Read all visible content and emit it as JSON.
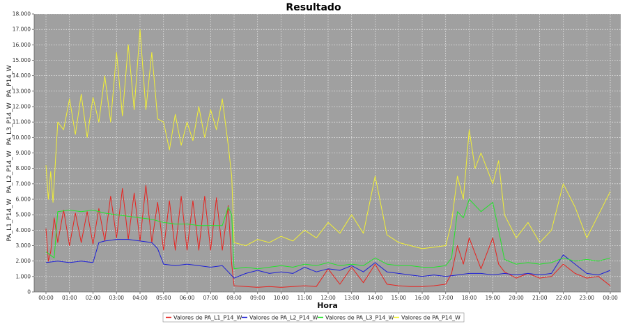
{
  "chart_data": {
    "type": "line",
    "title": "Resultado",
    "xlabel": "Hora",
    "ylabel": "PA_L1_P14_W, PA_L2_P14_W, PA_L3_P14_W, PA_P14_W",
    "ylabel_parts": [
      "PA_L1_P14_W",
      "PA_L2_P14_W",
      "PA_L3_P14_W",
      "PA_P14_W"
    ],
    "xlim": [
      0,
      24
    ],
    "ylim": [
      0,
      18000
    ],
    "x_ticks": [
      "00:00",
      "01:00",
      "02:00",
      "03:00",
      "04:00",
      "05:00",
      "06:00",
      "07:00",
      "08:00",
      "09:00",
      "10:00",
      "11:00",
      "12:00",
      "13:00",
      "14:00",
      "15:00",
      "16:00",
      "17:00",
      "18:00",
      "19:00",
      "20:00",
      "21:00",
      "22:00",
      "23:00",
      "00:00"
    ],
    "y_ticks": [
      {
        "value": 0,
        "label": "0"
      },
      {
        "value": 1000,
        "label": "1.000"
      },
      {
        "value": 2000,
        "label": "2.000"
      },
      {
        "value": 3000,
        "label": "3.000"
      },
      {
        "value": 4000,
        "label": "4.000"
      },
      {
        "value": 5000,
        "label": "5.000"
      },
      {
        "value": 6000,
        "label": "6.000"
      },
      {
        "value": 7000,
        "label": "7.000"
      },
      {
        "value": 8000,
        "label": "8.000"
      },
      {
        "value": 9000,
        "label": "9.000"
      },
      {
        "value": 10000,
        "label": "10.000"
      },
      {
        "value": 11000,
        "label": "11.000"
      },
      {
        "value": 12000,
        "label": "12.000"
      },
      {
        "value": 13000,
        "label": "13.000"
      },
      {
        "value": 14000,
        "label": "14.000"
      },
      {
        "value": 15000,
        "label": "15.000"
      },
      {
        "value": 16000,
        "label": "16.000"
      },
      {
        "value": 17000,
        "label": "17.000"
      },
      {
        "value": 18000,
        "label": "18.000"
      }
    ],
    "grid": true,
    "legend_position": "bottom",
    "plot_background": "#a0a0a0",
    "series": [
      {
        "name": "Valores de PA_L1_P14_W",
        "color": "#e8231f",
        "x": [
          0,
          0.1,
          0.2,
          0.35,
          0.5,
          0.75,
          1,
          1.25,
          1.5,
          1.75,
          2,
          2.25,
          2.5,
          2.75,
          3,
          3.25,
          3.5,
          3.75,
          4,
          4.25,
          4.5,
          4.75,
          5,
          5.25,
          5.5,
          5.75,
          6,
          6.25,
          6.5,
          6.75,
          7,
          7.25,
          7.5,
          7.75,
          7.9,
          8,
          8.5,
          9,
          9.5,
          10,
          10.5,
          11,
          11.5,
          12,
          12.5,
          13,
          13.5,
          14,
          14.5,
          15,
          15.5,
          16,
          16.5,
          17,
          17.25,
          17.5,
          17.75,
          18,
          18.5,
          19,
          19.25,
          19.5,
          20,
          20.5,
          21,
          21.5,
          22,
          22.5,
          23,
          23.5,
          24
        ],
        "y": [
          4100,
          2000,
          2600,
          4800,
          3200,
          5300,
          3000,
          5100,
          3200,
          5200,
          3100,
          5400,
          3300,
          6200,
          3500,
          6700,
          3400,
          6400,
          3300,
          6900,
          3200,
          5800,
          2700,
          5900,
          2700,
          6200,
          2700,
          5900,
          2700,
          6200,
          2700,
          6100,
          2700,
          5600,
          1800,
          400,
          350,
          300,
          350,
          300,
          350,
          400,
          350,
          1500,
          500,
          1600,
          600,
          1800,
          500,
          400,
          350,
          350,
          400,
          500,
          1200,
          3000,
          1800,
          3500,
          1500,
          3500,
          1800,
          1300,
          900,
          1200,
          900,
          1000,
          1800,
          1200,
          900,
          1000,
          400
        ]
      },
      {
        "name": "Valores de PA_L2_P14_W",
        "color": "#1e20d6",
        "x": [
          0,
          0.5,
          1,
          1.5,
          2,
          2.25,
          2.5,
          3,
          3.5,
          4,
          4.5,
          4.75,
          5,
          5.5,
          6,
          6.5,
          7,
          7.5,
          7.75,
          8,
          8.5,
          9,
          9.5,
          10,
          10.5,
          11,
          11.5,
          12,
          12.5,
          13,
          13.5,
          14,
          14.5,
          15,
          15.5,
          16,
          16.5,
          17,
          17.5,
          18,
          18.5,
          19,
          19.5,
          20,
          20.5,
          21,
          21.5,
          22,
          22.5,
          23,
          23.5,
          24
        ],
        "y": [
          1900,
          2000,
          1900,
          2000,
          1900,
          3200,
          3300,
          3400,
          3400,
          3300,
          3200,
          2800,
          1800,
          1700,
          1800,
          1700,
          1600,
          1700,
          1300,
          900,
          1200,
          1400,
          1200,
          1300,
          1200,
          1600,
          1300,
          1500,
          1400,
          1700,
          1300,
          1900,
          1300,
          1200,
          1100,
          1000,
          1100,
          1000,
          1100,
          1200,
          1200,
          1100,
          1200,
          1100,
          1200,
          1100,
          1200,
          2400,
          1800,
          1200,
          1100,
          1400
        ]
      },
      {
        "name": "Valores de PA_L3_P14_W",
        "color": "#22e42a",
        "x": [
          0,
          0.35,
          0.5,
          1,
          1.5,
          2,
          2.5,
          3,
          3.5,
          4,
          4.5,
          5,
          5.5,
          6,
          6.5,
          7,
          7.5,
          7.75,
          7.9,
          8,
          8.5,
          9,
          9.5,
          10,
          10.5,
          11,
          11.5,
          12,
          12.5,
          13,
          13.5,
          14,
          14.5,
          15,
          15.5,
          16,
          16.5,
          17,
          17.25,
          17.5,
          17.75,
          18,
          18.5,
          19,
          19.25,
          19.5,
          20,
          20.5,
          21,
          21.5,
          22,
          22.5,
          23,
          23.5,
          24
        ],
        "y": [
          2600,
          2200,
          5200,
          5300,
          5200,
          5300,
          5100,
          5000,
          4900,
          4800,
          4700,
          4500,
          4400,
          4400,
          4300,
          4300,
          4300,
          5500,
          5000,
          1500,
          1600,
          1500,
          1600,
          1700,
          1600,
          1800,
          1700,
          1900,
          1700,
          1800,
          1700,
          2200,
          1800,
          1700,
          1700,
          1600,
          1600,
          1700,
          2200,
          5200,
          4800,
          6000,
          5200,
          5800,
          4000,
          2100,
          1800,
          1900,
          1800,
          1900,
          2200,
          2000,
          2100,
          2000,
          2200
        ]
      },
      {
        "name": "Valores de PA_P14_W",
        "color": "#f2f034",
        "x": [
          0,
          0.1,
          0.2,
          0.3,
          0.5,
          0.75,
          1,
          1.25,
          1.5,
          1.75,
          2,
          2.25,
          2.5,
          2.75,
          3,
          3.25,
          3.5,
          3.75,
          4,
          4.25,
          4.5,
          4.75,
          5,
          5.25,
          5.5,
          5.75,
          6,
          6.25,
          6.5,
          6.75,
          7,
          7.25,
          7.5,
          7.75,
          7.9,
          8,
          8.5,
          9,
          9.5,
          10,
          10.5,
          11,
          11.5,
          12,
          12.5,
          13,
          13.5,
          14,
          14.5,
          15,
          15.5,
          16,
          16.5,
          17,
          17.25,
          17.5,
          17.75,
          18,
          18.25,
          18.5,
          19,
          19.25,
          19.5,
          20,
          20.5,
          21,
          21.5,
          22,
          22.5,
          23,
          23.5,
          24
        ],
        "y": [
          8200,
          6000,
          7800,
          5800,
          11000,
          10500,
          12500,
          10200,
          12800,
          10000,
          12600,
          11000,
          14000,
          11000,
          15500,
          11400,
          16000,
          11800,
          17000,
          11800,
          15500,
          11200,
          11000,
          9200,
          11500,
          9500,
          11000,
          9800,
          12000,
          10000,
          11800,
          10500,
          12500,
          9500,
          7500,
          3200,
          3000,
          3400,
          3200,
          3600,
          3300,
          4000,
          3500,
          4500,
          3800,
          5000,
          3800,
          7500,
          3700,
          3200,
          3000,
          2800,
          2900,
          3000,
          4500,
          7500,
          6000,
          10500,
          8000,
          9000,
          7000,
          8500,
          5000,
          3500,
          4500,
          3200,
          4000,
          7000,
          5500,
          3500,
          5000,
          6500
        ]
      }
    ]
  }
}
